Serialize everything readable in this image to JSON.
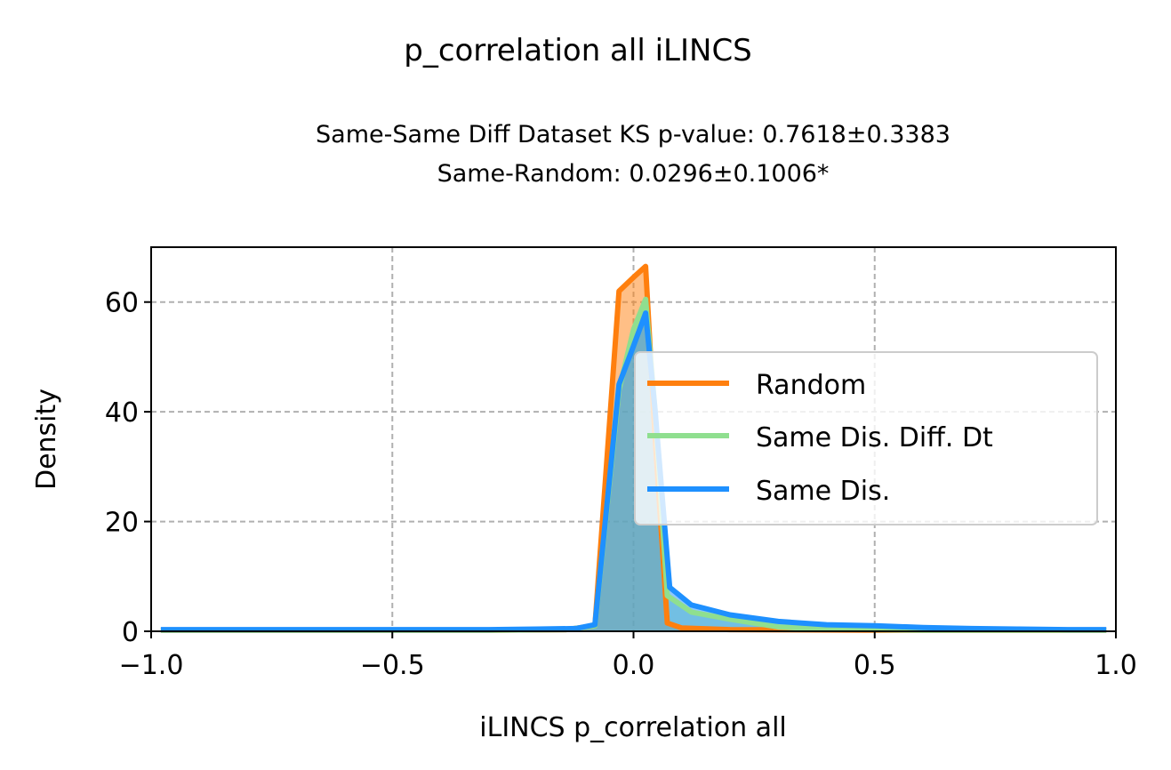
{
  "chart_data": {
    "type": "area",
    "suptitle": "p_correlation all iLINCS",
    "title_line1": "Same-Same Diff Dataset  KS p-value: 0.7618±0.3383",
    "title_line2": "Same-Random: 0.0296±0.1006*",
    "xlabel": "iLINCS p_correlation all",
    "ylabel": "Density",
    "xlim": [
      -1.0,
      1.0
    ],
    "ylim": [
      0,
      70
    ],
    "xticks": [
      -1.0,
      -0.5,
      0.0,
      0.5,
      1.0
    ],
    "xtick_labels": [
      "−1.0",
      "−0.5",
      "0.0",
      "0.5",
      "1.0"
    ],
    "yticks": [
      0,
      20,
      40,
      60
    ],
    "ytick_labels": [
      "0",
      "20",
      "40",
      "60"
    ],
    "grid": true,
    "legend_position": "right",
    "series": [
      {
        "name": "Random",
        "color": "#ff7f0e",
        "points": [
          [
            -0.98,
            0.2
          ],
          [
            -0.6,
            0.2
          ],
          [
            -0.3,
            0.2
          ],
          [
            -0.14,
            0.3
          ],
          [
            -0.08,
            1.0
          ],
          [
            -0.03,
            62
          ],
          [
            0.0,
            64.5
          ],
          [
            0.025,
            66.5
          ],
          [
            0.045,
            35
          ],
          [
            0.07,
            1.5
          ],
          [
            0.1,
            0.6
          ],
          [
            0.2,
            0.3
          ],
          [
            0.5,
            0.2
          ],
          [
            0.98,
            0.2
          ]
        ]
      },
      {
        "name": "Same Dis. Diff. Dt",
        "color": "#8fdf8f",
        "points": [
          [
            -0.98,
            0.2
          ],
          [
            -0.6,
            0.2
          ],
          [
            -0.3,
            0.2
          ],
          [
            -0.14,
            0.3
          ],
          [
            -0.08,
            1.0
          ],
          [
            -0.03,
            44
          ],
          [
            0.0,
            55
          ],
          [
            0.025,
            60.5
          ],
          [
            0.045,
            40
          ],
          [
            0.07,
            6.5
          ],
          [
            0.12,
            3.5
          ],
          [
            0.2,
            2.2
          ],
          [
            0.3,
            0.8
          ],
          [
            0.4,
            0.4
          ],
          [
            0.6,
            0.2
          ],
          [
            0.98,
            0.2
          ]
        ]
      },
      {
        "name": "Same Dis.",
        "color": "#1e90ff",
        "points": [
          [
            -0.98,
            0.3
          ],
          [
            -0.6,
            0.3
          ],
          [
            -0.3,
            0.3
          ],
          [
            -0.2,
            0.4
          ],
          [
            -0.12,
            0.5
          ],
          [
            -0.08,
            1.2
          ],
          [
            -0.03,
            45
          ],
          [
            0.0,
            52
          ],
          [
            0.025,
            58
          ],
          [
            0.045,
            40
          ],
          [
            0.075,
            8
          ],
          [
            0.12,
            4.8
          ],
          [
            0.2,
            3.0
          ],
          [
            0.3,
            1.8
          ],
          [
            0.4,
            1.2
          ],
          [
            0.5,
            1.0
          ],
          [
            0.6,
            0.7
          ],
          [
            0.7,
            0.5
          ],
          [
            0.8,
            0.4
          ],
          [
            0.9,
            0.3
          ],
          [
            0.98,
            0.3
          ]
        ]
      }
    ]
  }
}
